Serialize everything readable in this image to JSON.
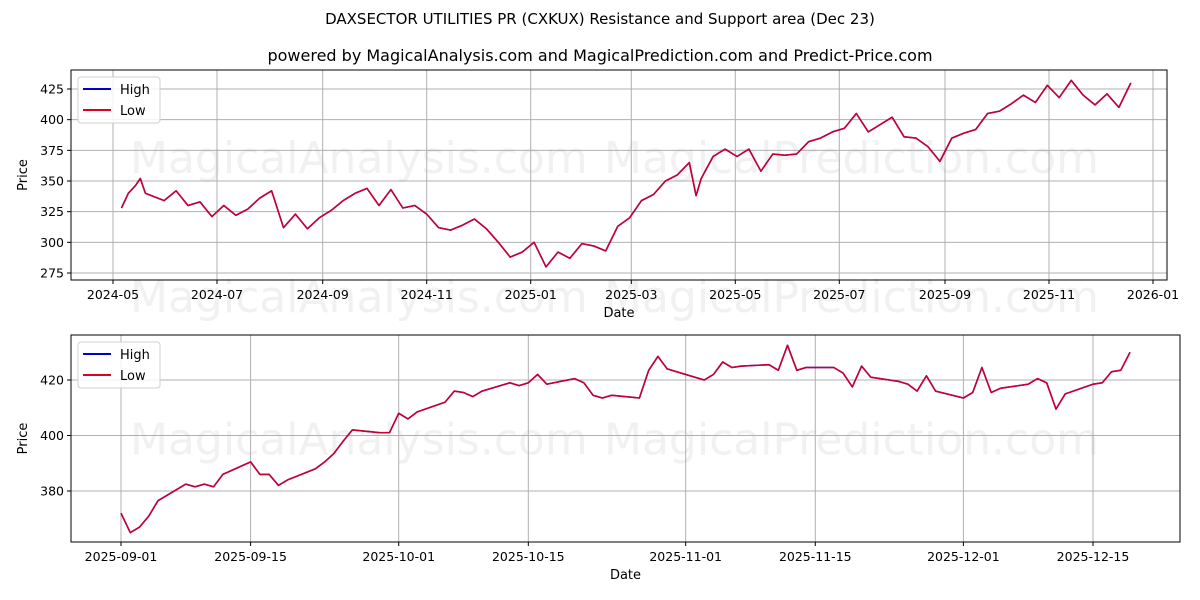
{
  "header": {
    "title": "DAXSECTOR UTILITIES PR (CXKUX) Resistance and Support area (Dec 23)",
    "subtitle": "powered by MagicalAnalysis.com and MagicalPrediction.com and Predict-Price.com"
  },
  "watermarks": [
    "MagicalAnalysis.com",
    "MagicalPrediction.com"
  ],
  "colors": {
    "high": "#0000cc",
    "low": "#dd0022",
    "grid": "#b0b0b0"
  },
  "chart_data": [
    {
      "type": "line",
      "title": "",
      "xlabel": "Date",
      "ylabel": "Price",
      "ylim": [
        271,
        438
      ],
      "yticks": [
        275,
        300,
        325,
        350,
        375,
        400,
        425
      ],
      "xticks": [
        "2024-05",
        "2024-07",
        "2024-09",
        "2024-11",
        "2025-01",
        "2025-03",
        "2025-05",
        "2025-07",
        "2025-09",
        "2025-11",
        "2026-01"
      ],
      "grid": true,
      "legend": {
        "position": "upper left",
        "entries": [
          "High",
          "Low"
        ]
      },
      "series": [
        {
          "name": "High",
          "x": [
            "2024-05-06",
            "2024-05-10",
            "2024-05-14",
            "2024-05-17",
            "2024-05-20",
            "2024-05-31",
            "2024-06-07",
            "2024-06-14",
            "2024-06-21",
            "2024-06-28",
            "2024-07-05",
            "2024-07-12",
            "2024-07-19",
            "2024-07-26",
            "2024-08-02",
            "2024-08-09",
            "2024-08-16",
            "2024-08-23",
            "2024-08-30",
            "2024-09-06",
            "2024-09-13",
            "2024-09-20",
            "2024-09-27",
            "2024-10-04",
            "2024-10-11",
            "2024-10-18",
            "2024-10-25",
            "2024-11-01",
            "2024-11-08",
            "2024-11-15",
            "2024-11-22",
            "2024-11-29",
            "2024-12-06",
            "2024-12-13",
            "2024-12-20",
            "2024-12-27",
            "2025-01-03",
            "2025-01-10",
            "2025-01-17",
            "2025-01-24",
            "2025-01-31",
            "2025-02-07",
            "2025-02-14",
            "2025-02-21",
            "2025-02-28",
            "2025-03-07",
            "2025-03-14",
            "2025-03-21",
            "2025-03-28",
            "2025-04-04",
            "2025-04-08",
            "2025-04-11",
            "2025-04-18",
            "2025-04-25",
            "2025-05-02",
            "2025-05-09",
            "2025-05-16",
            "2025-05-23",
            "2025-05-30",
            "2025-06-06",
            "2025-06-13",
            "2025-06-20",
            "2025-06-27",
            "2025-07-04",
            "2025-07-11",
            "2025-07-18",
            "2025-07-25",
            "2025-08-01",
            "2025-08-08",
            "2025-08-15",
            "2025-08-22",
            "2025-08-29",
            "2025-09-05",
            "2025-09-12",
            "2025-09-19",
            "2025-09-26",
            "2025-10-03",
            "2025-10-10",
            "2025-10-17",
            "2025-10-24",
            "2025-10-31",
            "2025-11-07",
            "2025-11-14",
            "2025-11-21",
            "2025-11-28",
            "2025-12-05",
            "2025-12-12",
            "2025-12-19"
          ],
          "values": [
            328,
            340,
            346,
            352,
            340,
            334,
            342,
            330,
            333,
            321,
            330,
            322,
            327,
            336,
            342,
            312,
            323,
            311,
            320,
            326,
            334,
            340,
            344,
            330,
            343,
            328,
            330,
            323,
            312,
            310,
            314,
            319,
            311,
            300,
            288,
            292,
            300,
            280,
            292,
            287,
            299,
            297,
            293,
            313,
            320,
            334,
            339,
            350,
            355,
            365,
            338,
            352,
            370,
            376,
            370,
            376,
            358,
            372,
            371,
            372,
            382,
            385,
            390,
            393,
            405,
            390,
            396,
            402,
            386,
            385,
            378,
            366,
            385,
            389,
            392,
            405,
            407,
            413,
            420,
            414,
            428,
            418,
            432,
            420,
            412,
            421,
            410,
            430
          ]
        },
        {
          "name": "Low",
          "x": [
            "2024-05-06",
            "2024-05-10",
            "2024-05-14",
            "2024-05-17",
            "2024-05-20",
            "2024-05-31",
            "2024-06-07",
            "2024-06-14",
            "2024-06-21",
            "2024-06-28",
            "2024-07-05",
            "2024-07-12",
            "2024-07-19",
            "2024-07-26",
            "2024-08-02",
            "2024-08-09",
            "2024-08-16",
            "2024-08-23",
            "2024-08-30",
            "2024-09-06",
            "2024-09-13",
            "2024-09-20",
            "2024-09-27",
            "2024-10-04",
            "2024-10-11",
            "2024-10-18",
            "2024-10-25",
            "2024-11-01",
            "2024-11-08",
            "2024-11-15",
            "2024-11-22",
            "2024-11-29",
            "2024-12-06",
            "2024-12-13",
            "2024-12-20",
            "2024-12-27",
            "2025-01-03",
            "2025-01-10",
            "2025-01-17",
            "2025-01-24",
            "2025-01-31",
            "2025-02-07",
            "2025-02-14",
            "2025-02-21",
            "2025-02-28",
            "2025-03-07",
            "2025-03-14",
            "2025-03-21",
            "2025-03-28",
            "2025-04-04",
            "2025-04-08",
            "2025-04-11",
            "2025-04-18",
            "2025-04-25",
            "2025-05-02",
            "2025-05-09",
            "2025-05-16",
            "2025-05-23",
            "2025-05-30",
            "2025-06-06",
            "2025-06-13",
            "2025-06-20",
            "2025-06-27",
            "2025-07-04",
            "2025-07-11",
            "2025-07-18",
            "2025-07-25",
            "2025-08-01",
            "2025-08-08",
            "2025-08-15",
            "2025-08-22",
            "2025-08-29",
            "2025-09-05",
            "2025-09-12",
            "2025-09-19",
            "2025-09-26",
            "2025-10-03",
            "2025-10-10",
            "2025-10-17",
            "2025-10-24",
            "2025-10-31",
            "2025-11-07",
            "2025-11-14",
            "2025-11-21",
            "2025-11-28",
            "2025-12-05",
            "2025-12-12",
            "2025-12-19"
          ],
          "values": [
            328,
            340,
            346,
            352,
            340,
            334,
            342,
            330,
            333,
            321,
            330,
            322,
            327,
            336,
            342,
            312,
            323,
            311,
            320,
            326,
            334,
            340,
            344,
            330,
            343,
            328,
            330,
            323,
            312,
            310,
            314,
            319,
            311,
            300,
            288,
            292,
            300,
            280,
            292,
            287,
            299,
            297,
            293,
            313,
            320,
            334,
            339,
            350,
            355,
            365,
            338,
            352,
            370,
            376,
            370,
            376,
            358,
            372,
            371,
            372,
            382,
            385,
            390,
            393,
            405,
            390,
            396,
            402,
            386,
            385,
            378,
            366,
            385,
            389,
            392,
            405,
            407,
            413,
            420,
            414,
            428,
            418,
            432,
            420,
            412,
            421,
            410,
            430
          ]
        }
      ]
    },
    {
      "type": "line",
      "title": "",
      "xlabel": "Date",
      "ylabel": "Price",
      "ylim": [
        362,
        436
      ],
      "yticks": [
        380,
        400,
        420
      ],
      "xticks": [
        "2025-09-01",
        "2025-09-15",
        "2025-10-01",
        "2025-10-15",
        "2025-11-01",
        "2025-11-15",
        "2025-12-01",
        "2025-12-15"
      ],
      "grid": true,
      "legend": {
        "position": "upper left",
        "entries": [
          "High",
          "Low"
        ]
      },
      "series": [
        {
          "name": "High",
          "x": [
            "2025-09-01",
            "2025-09-02",
            "2025-09-03",
            "2025-09-04",
            "2025-09-05",
            "2025-09-08",
            "2025-09-09",
            "2025-09-10",
            "2025-09-11",
            "2025-09-12",
            "2025-09-15",
            "2025-09-16",
            "2025-09-17",
            "2025-09-18",
            "2025-09-19",
            "2025-09-22",
            "2025-09-23",
            "2025-09-24",
            "2025-09-25",
            "2025-09-26",
            "2025-09-29",
            "2025-09-30",
            "2025-10-01",
            "2025-10-02",
            "2025-10-03",
            "2025-10-06",
            "2025-10-07",
            "2025-10-08",
            "2025-10-09",
            "2025-10-10",
            "2025-10-13",
            "2025-10-14",
            "2025-10-15",
            "2025-10-16",
            "2025-10-17",
            "2025-10-20",
            "2025-10-21",
            "2025-10-22",
            "2025-10-23",
            "2025-10-24",
            "2025-10-27",
            "2025-10-28",
            "2025-10-29",
            "2025-10-30",
            "2025-10-31",
            "2025-11-03",
            "2025-11-04",
            "2025-11-05",
            "2025-11-06",
            "2025-11-07",
            "2025-11-10",
            "2025-11-11",
            "2025-11-12",
            "2025-11-13",
            "2025-11-14",
            "2025-11-17",
            "2025-11-18",
            "2025-11-19",
            "2025-11-20",
            "2025-11-21",
            "2025-11-24",
            "2025-11-25",
            "2025-11-26",
            "2025-11-27",
            "2025-11-28",
            "2025-12-01",
            "2025-12-02",
            "2025-12-03",
            "2025-12-04",
            "2025-12-05",
            "2025-12-08",
            "2025-12-09",
            "2025-12-10",
            "2025-12-11",
            "2025-12-12",
            "2025-12-15",
            "2025-12-16",
            "2025-12-17",
            "2025-12-18",
            "2025-12-19"
          ],
          "values": [
            372,
            365,
            367,
            371,
            376.5,
            382.5,
            381.5,
            382.5,
            381.5,
            386,
            390.5,
            386,
            386,
            382,
            384,
            388,
            390.5,
            393.5,
            398,
            402,
            401,
            401,
            408,
            406,
            408.5,
            412,
            416,
            415.5,
            414,
            416,
            419,
            418,
            419,
            422,
            418.5,
            420.5,
            419,
            414.5,
            413.5,
            414.5,
            413.5,
            423.5,
            428.5,
            424,
            423,
            420,
            422,
            426.5,
            424.5,
            425,
            425.5,
            423.5,
            432.5,
            423.5,
            424.5,
            424.5,
            422.5,
            417.5,
            425,
            421,
            419.5,
            418.5,
            416,
            421.5,
            416,
            413.5,
            415.5,
            424.5,
            415.5,
            417,
            418.5,
            420.5,
            419,
            409.5,
            415,
            418.5,
            419,
            423,
            423.5,
            430
          ]
        },
        {
          "name": "Low",
          "x": [
            "2025-09-01",
            "2025-09-02",
            "2025-09-03",
            "2025-09-04",
            "2025-09-05",
            "2025-09-08",
            "2025-09-09",
            "2025-09-10",
            "2025-09-11",
            "2025-09-12",
            "2025-09-15",
            "2025-09-16",
            "2025-09-17",
            "2025-09-18",
            "2025-09-19",
            "2025-09-22",
            "2025-09-23",
            "2025-09-24",
            "2025-09-25",
            "2025-09-26",
            "2025-09-29",
            "2025-09-30",
            "2025-10-01",
            "2025-10-02",
            "2025-10-03",
            "2025-10-06",
            "2025-10-07",
            "2025-10-08",
            "2025-10-09",
            "2025-10-10",
            "2025-10-13",
            "2025-10-14",
            "2025-10-15",
            "2025-10-16",
            "2025-10-17",
            "2025-10-20",
            "2025-10-21",
            "2025-10-22",
            "2025-10-23",
            "2025-10-24",
            "2025-10-27",
            "2025-10-28",
            "2025-10-29",
            "2025-10-30",
            "2025-10-31",
            "2025-11-03",
            "2025-11-04",
            "2025-11-05",
            "2025-11-06",
            "2025-11-07",
            "2025-11-10",
            "2025-11-11",
            "2025-11-12",
            "2025-11-13",
            "2025-11-14",
            "2025-11-17",
            "2025-11-18",
            "2025-11-19",
            "2025-11-20",
            "2025-11-21",
            "2025-11-24",
            "2025-11-25",
            "2025-11-26",
            "2025-11-27",
            "2025-11-28",
            "2025-12-01",
            "2025-12-02",
            "2025-12-03",
            "2025-12-04",
            "2025-12-05",
            "2025-12-08",
            "2025-12-09",
            "2025-12-10",
            "2025-12-11",
            "2025-12-12",
            "2025-12-15",
            "2025-12-16",
            "2025-12-17",
            "2025-12-18",
            "2025-12-19"
          ],
          "values": [
            372,
            365,
            367,
            371,
            376.5,
            382.5,
            381.5,
            382.5,
            381.5,
            386,
            390.5,
            386,
            386,
            382,
            384,
            388,
            390.5,
            393.5,
            398,
            402,
            401,
            401,
            408,
            406,
            408.5,
            412,
            416,
            415.5,
            414,
            416,
            419,
            418,
            419,
            422,
            418.5,
            420.5,
            419,
            414.5,
            413.5,
            414.5,
            413.5,
            423.5,
            428.5,
            424,
            423,
            420,
            422,
            426.5,
            424.5,
            425,
            425.5,
            423.5,
            432.5,
            423.5,
            424.5,
            424.5,
            422.5,
            417.5,
            425,
            421,
            419.5,
            418.5,
            416,
            421.5,
            416,
            413.5,
            415.5,
            424.5,
            415.5,
            417,
            418.5,
            420.5,
            419,
            409.5,
            415,
            418.5,
            419,
            423,
            423.5,
            430
          ]
        }
      ]
    }
  ]
}
